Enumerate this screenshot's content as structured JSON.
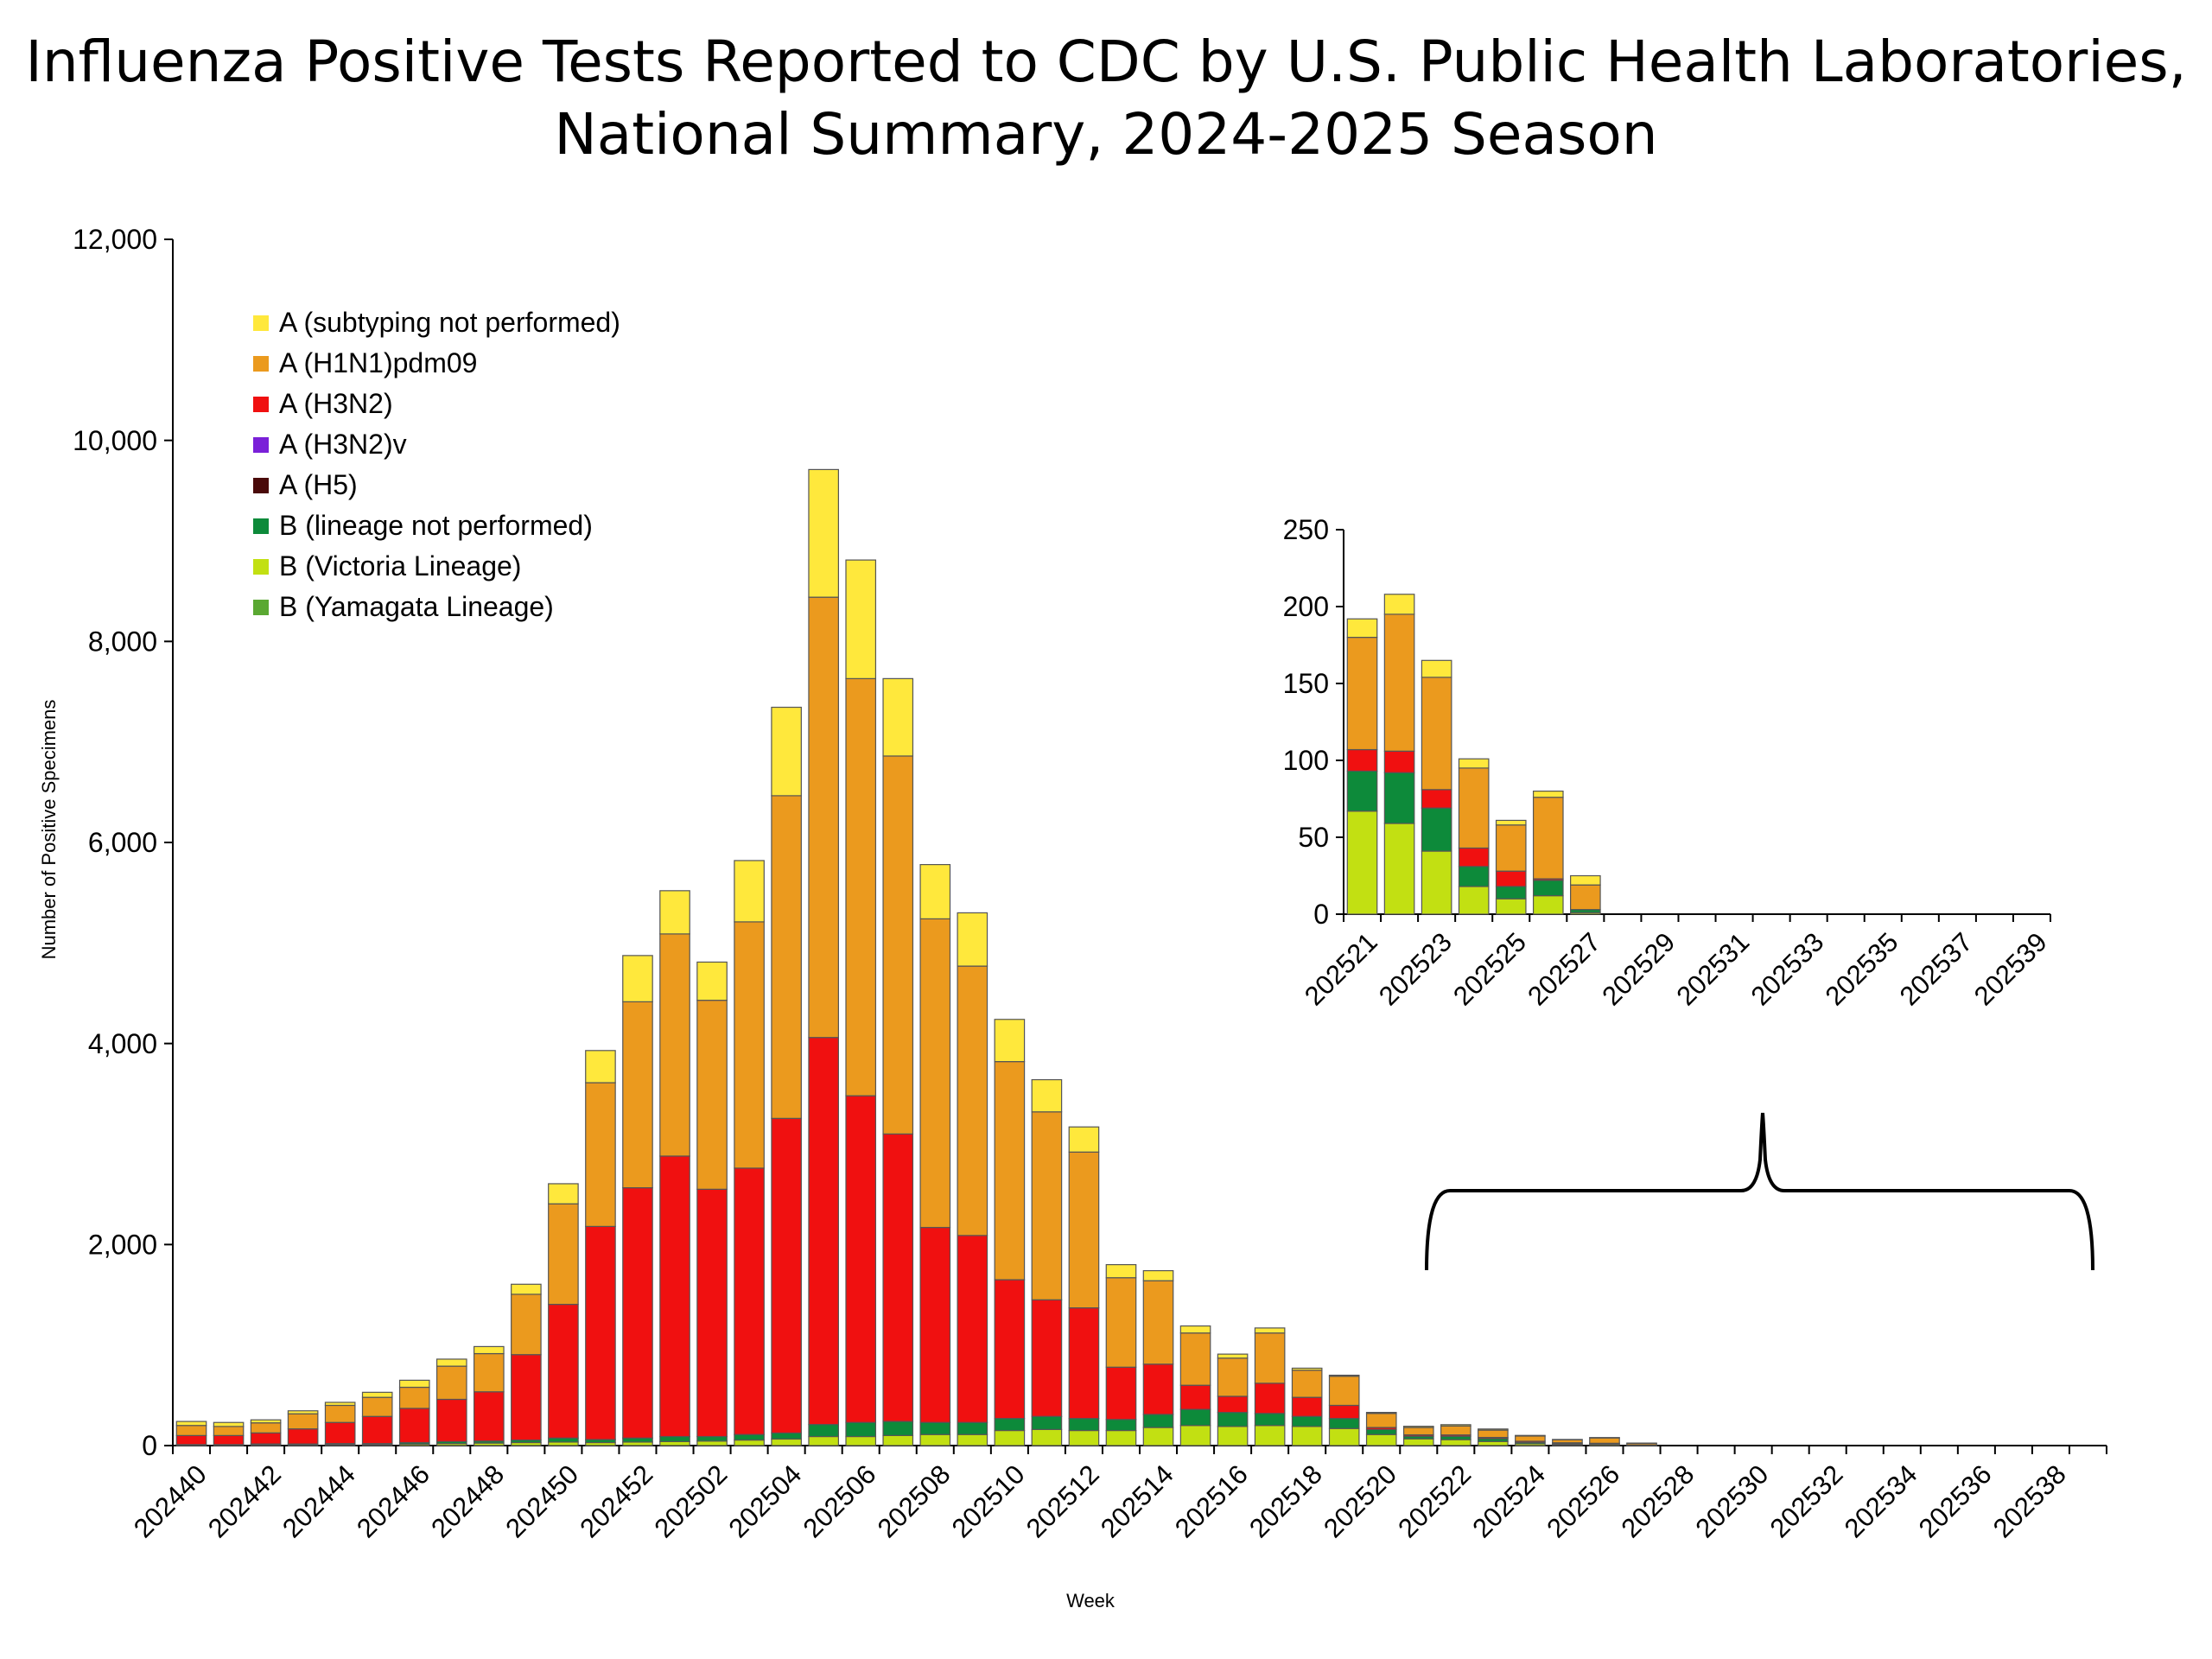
{
  "title_line1": "Influenza Positive Tests Reported to CDC by U.S. Public Health Laboratories,",
  "title_line2": "National Summary, 2024-2025 Season",
  "chart_data": [
    {
      "type": "bar",
      "stacked": true,
      "xlabel": "Week",
      "ylabel": "Number of Positive Specimens",
      "ylim": [
        0,
        12000
      ],
      "yticks": [
        0,
        2000,
        4000,
        6000,
        8000,
        10000,
        12000
      ],
      "ytick_labels": [
        "0",
        "2,000",
        "4,000",
        "6,000",
        "8,000",
        "10,000",
        "12,000"
      ],
      "grid": false,
      "legend_position": "top-left",
      "categories": [
        "202440",
        "202441",
        "202442",
        "202443",
        "202444",
        "202445",
        "202446",
        "202447",
        "202448",
        "202449",
        "202450",
        "202451",
        "202452",
        "202501",
        "202502",
        "202503",
        "202504",
        "202505",
        "202506",
        "202507",
        "202508",
        "202509",
        "202510",
        "202511",
        "202512",
        "202513",
        "202514",
        "202515",
        "202516",
        "202517",
        "202518",
        "202519",
        "202520",
        "202521",
        "202522",
        "202523",
        "202524",
        "202525",
        "202526",
        "202527",
        "202528",
        "202529",
        "202530",
        "202531",
        "202532",
        "202533",
        "202534",
        "202535",
        "202536",
        "202537",
        "202538",
        "202539"
      ],
      "x_tick_labels": [
        "202440",
        "202442",
        "202444",
        "202446",
        "202448",
        "202450",
        "202452",
        "202502",
        "202504",
        "202506",
        "202508",
        "202510",
        "202512",
        "202514",
        "202516",
        "202518",
        "202520",
        "202522",
        "202524",
        "202526",
        "202528",
        "202530",
        "202532",
        "202534",
        "202536",
        "202538"
      ],
      "series": [
        {
          "name": "B (Yamagata Lineage)",
          "color": "#5aa832",
          "values": [
            0,
            0,
            0,
            0,
            0,
            0,
            0,
            0,
            0,
            0,
            0,
            0,
            0,
            0,
            0,
            0,
            0,
            0,
            0,
            0,
            0,
            0,
            0,
            0,
            0,
            0,
            0,
            0,
            0,
            0,
            0,
            0,
            0,
            0,
            0,
            0,
            0,
            0,
            0,
            0,
            0,
            0,
            0,
            0,
            0,
            0,
            0,
            0,
            0,
            0,
            0,
            0
          ]
        },
        {
          "name": "B (Victoria Lineage)",
          "color": "#c2e012",
          "values": [
            5,
            5,
            8,
            8,
            10,
            10,
            15,
            20,
            25,
            30,
            35,
            30,
            35,
            40,
            45,
            55,
            65,
            90,
            90,
            100,
            110,
            110,
            150,
            160,
            150,
            150,
            180,
            200,
            190,
            200,
            190,
            170,
            110,
            67,
            59,
            41,
            18,
            10,
            12,
            1,
            0,
            0,
            0,
            0,
            0,
            0,
            0,
            0,
            0,
            0,
            0,
            0
          ]
        },
        {
          "name": "B (lineage not performed)",
          "color": "#0d8a3a",
          "values": [
            5,
            5,
            8,
            8,
            10,
            10,
            15,
            20,
            20,
            25,
            40,
            30,
            40,
            50,
            45,
            55,
            60,
            120,
            140,
            140,
            120,
            120,
            120,
            130,
            120,
            110,
            130,
            160,
            140,
            120,
            100,
            100,
            50,
            26,
            33,
            28,
            13,
            8,
            10,
            2,
            0,
            0,
            0,
            0,
            0,
            0,
            0,
            0,
            0,
            0,
            0,
            0
          ]
        },
        {
          "name": "A (H5)",
          "color": "#4a0a0a",
          "values": [
            0,
            0,
            0,
            0,
            0,
            0,
            0,
            0,
            0,
            0,
            0,
            0,
            0,
            0,
            0,
            0,
            0,
            0,
            0,
            0,
            0,
            0,
            0,
            0,
            0,
            0,
            0,
            0,
            0,
            0,
            0,
            0,
            0,
            0,
            0,
            0,
            0,
            0,
            0,
            0,
            0,
            0,
            0,
            0,
            0,
            0,
            0,
            0,
            0,
            0,
            0,
            0
          ]
        },
        {
          "name": "A (H3N2)v",
          "color": "#7a20d8",
          "values": [
            0,
            0,
            0,
            0,
            0,
            0,
            0,
            0,
            0,
            0,
            0,
            0,
            0,
            0,
            0,
            0,
            0,
            0,
            0,
            0,
            0,
            0,
            0,
            0,
            0,
            0,
            0,
            0,
            0,
            0,
            0,
            0,
            0,
            0,
            0,
            0,
            0,
            0,
            0,
            0,
            0,
            0,
            0,
            0,
            0,
            0,
            0,
            0,
            0,
            0,
            0,
            0
          ]
        },
        {
          "name": "A (H3N2)",
          "color": "#f01010",
          "values": [
            90,
            90,
            110,
            150,
            210,
            270,
            340,
            420,
            490,
            850,
            1330,
            2120,
            2490,
            2790,
            2460,
            2650,
            3130,
            3850,
            3250,
            2860,
            1940,
            1860,
            1380,
            1160,
            1100,
            520,
            500,
            240,
            160,
            300,
            190,
            130,
            20,
            14,
            14,
            12,
            12,
            10,
            1,
            0,
            0,
            0,
            0,
            0,
            0,
            0,
            0,
            0,
            0,
            0,
            0,
            0
          ]
        },
        {
          "name": "A (H1N1)pdm09",
          "color": "#eb9a1e",
          "values": [
            100,
            90,
            100,
            150,
            170,
            190,
            210,
            330,
            380,
            600,
            1000,
            1430,
            1850,
            2210,
            1880,
            2450,
            3210,
            4380,
            4150,
            3760,
            3070,
            2680,
            2170,
            1870,
            1550,
            890,
            830,
            520,
            380,
            500,
            270,
            290,
            140,
            73,
            89,
            73,
            52,
            30,
            53,
            16,
            0,
            0,
            0,
            0,
            0,
            0,
            0,
            0,
            0,
            0,
            0,
            0
          ]
        },
        {
          "name": "A (subtyping not performed)",
          "color": "#ffe83c",
          "values": [
            40,
            40,
            30,
            30,
            30,
            50,
            70,
            70,
            70,
            100,
            200,
            320,
            460,
            430,
            380,
            610,
            880,
            1270,
            1180,
            770,
            540,
            530,
            420,
            320,
            250,
            130,
            100,
            70,
            40,
            50,
            20,
            10,
            10,
            12,
            13,
            11,
            6,
            3,
            4,
            6,
            0,
            0,
            0,
            0,
            0,
            0,
            0,
            0,
            0,
            0,
            0,
            0
          ]
        }
      ]
    },
    {
      "type": "bar",
      "stacked": true,
      "inset": true,
      "ylim": [
        0,
        250
      ],
      "yticks": [
        0,
        50,
        100,
        150,
        200,
        250
      ],
      "ytick_labels": [
        "0",
        "50",
        "100",
        "150",
        "200",
        "250"
      ],
      "categories": [
        "202521",
        "202522",
        "202523",
        "202524",
        "202525",
        "202526",
        "202527",
        "202528",
        "202529",
        "202530",
        "202531",
        "202532",
        "202533",
        "202534",
        "202535",
        "202536",
        "202537",
        "202538",
        "202539"
      ],
      "x_tick_labels": [
        "202521",
        "202523",
        "202525",
        "202527",
        "202529",
        "202531",
        "202533",
        "202535",
        "202537",
        "202539"
      ],
      "series": [
        {
          "name": "B (Victoria Lineage)",
          "color": "#c2e012",
          "values": [
            67,
            59,
            41,
            18,
            10,
            12,
            1,
            0,
            0,
            0,
            0,
            0,
            0,
            0,
            0,
            0,
            0,
            0,
            0
          ]
        },
        {
          "name": "B (lineage not performed)",
          "color": "#0d8a3a",
          "values": [
            26,
            33,
            28,
            13,
            8,
            10,
            2,
            0,
            0,
            0,
            0,
            0,
            0,
            0,
            0,
            0,
            0,
            0,
            0
          ]
        },
        {
          "name": "A (H3N2)",
          "color": "#f01010",
          "values": [
            14,
            14,
            12,
            12,
            10,
            1,
            0,
            0,
            0,
            0,
            0,
            0,
            0,
            0,
            0,
            0,
            0,
            0,
            0
          ]
        },
        {
          "name": "A (H1N1)pdm09",
          "color": "#eb9a1e",
          "values": [
            73,
            89,
            73,
            52,
            30,
            53,
            16,
            0,
            0,
            0,
            0,
            0,
            0,
            0,
            0,
            0,
            0,
            0,
            0
          ]
        },
        {
          "name": "A (subtyping not performed)",
          "color": "#ffe83c",
          "values": [
            12,
            13,
            11,
            6,
            3,
            4,
            6,
            0,
            0,
            0,
            0,
            0,
            0,
            0,
            0,
            0,
            0,
            0,
            0
          ]
        }
      ]
    }
  ],
  "legend": [
    {
      "label": "A (subtyping not performed)",
      "color": "#ffe83c"
    },
    {
      "label": "A (H1N1)pdm09",
      "color": "#eb9a1e"
    },
    {
      "label": "A (H3N2)",
      "color": "#f01010"
    },
    {
      "label": "A (H3N2)v",
      "color": "#7a20d8"
    },
    {
      "label": "A (H5)",
      "color": "#4a0a0a"
    },
    {
      "label": "B (lineage not performed)",
      "color": "#0d8a3a"
    },
    {
      "label": "B (Victoria Lineage)",
      "color": "#c2e012"
    },
    {
      "label": "B (Yamagata Lineage)",
      "color": "#5aa832"
    }
  ]
}
